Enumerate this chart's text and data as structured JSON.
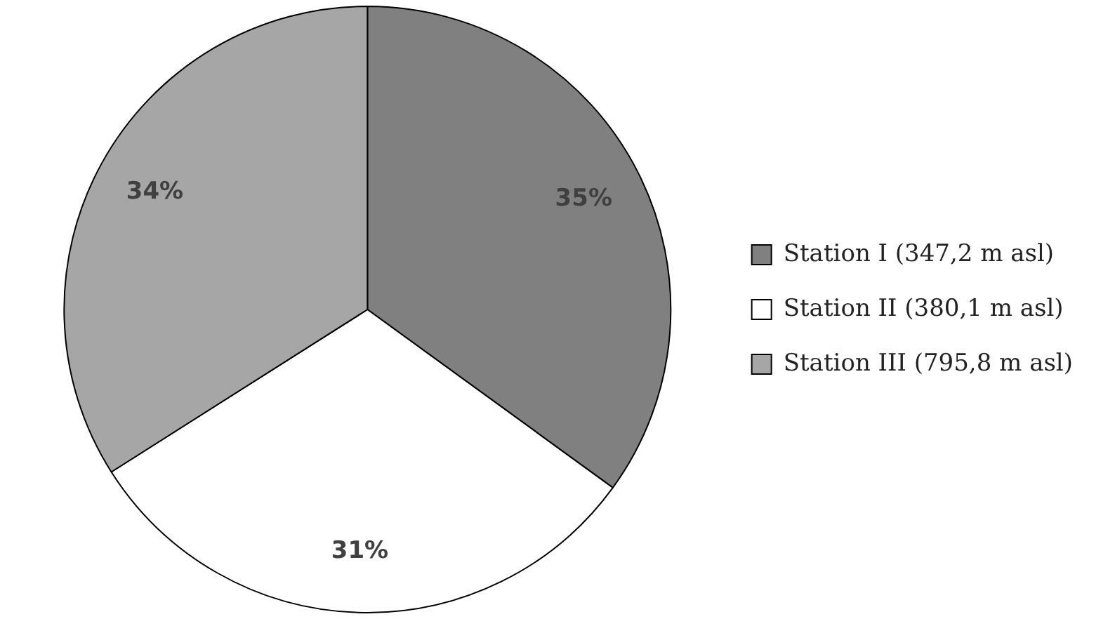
{
  "chart_data": {
    "type": "pie",
    "categories": [
      "Station I (347,2 m asl)",
      "Station II (380,1 m asl)",
      "Station III (795,8 m asl)"
    ],
    "values": [
      35,
      31,
      34
    ],
    "colors": [
      "#808080",
      "#ffffff",
      "#a6a6a6"
    ],
    "value_labels": [
      "35%",
      "31%",
      "34%"
    ],
    "legend": "right"
  }
}
